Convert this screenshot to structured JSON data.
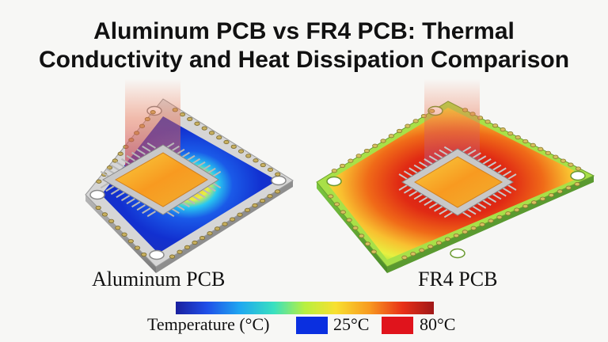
{
  "title": {
    "line1": "Aluminum PCB vs FR4 PCB: Thermal",
    "line2": "Conductivity and Heat Dissipation Comparison"
  },
  "boards": {
    "left_label": "Aluminum PCB",
    "right_label": "FR4 PCB"
  },
  "legend": {
    "label": "Temperature (°C)",
    "low_label": "25°C",
    "high_label": "80°C",
    "low_color": "#0a2fe0",
    "high_color": "#e0141c",
    "scale_colors": [
      "#1a1f9e",
      "#1f4fe8",
      "#1fa8f0",
      "#39e0c0",
      "#b8f040",
      "#f8e030",
      "#f89a20",
      "#e83018",
      "#a01818"
    ]
  }
}
